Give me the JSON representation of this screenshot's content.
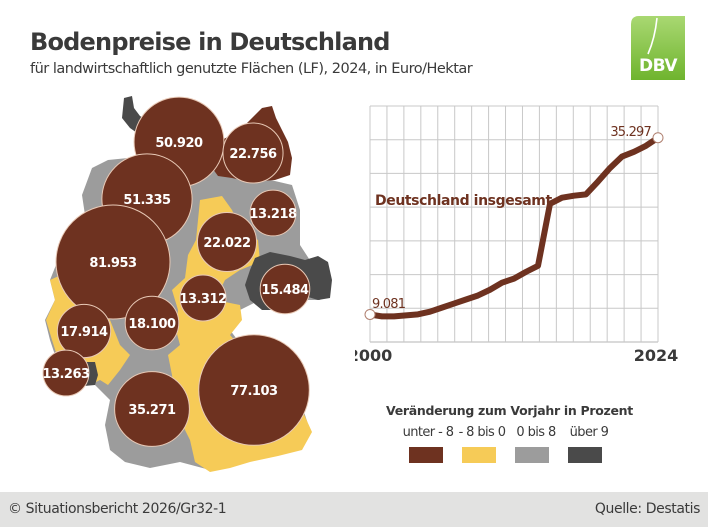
{
  "header": {
    "title": "Bodenpreise in Deutschland",
    "subtitle": "für landwirtschaftlich genutzte Flächen (LF), 2024, in Euro/Hektar",
    "logo_text": "DBV"
  },
  "colors": {
    "brown": "#6e3220",
    "yellow": "#f6cb57",
    "gray": "#9c9c9c",
    "dark": "#4a4a4a",
    "logo_green": "#7cbf3c",
    "grid": "#c8c8c8",
    "text": "#3a3a3a"
  },
  "map": {
    "bubbles": [
      {
        "label": "50.920",
        "value": 50920,
        "category": "unter -8"
      },
      {
        "label": "22.756",
        "value": 22756,
        "category": "unter -8"
      },
      {
        "label": "51.335",
        "value": 51335,
        "category": "unter -8"
      },
      {
        "label": "81.953",
        "value": 81953,
        "category": "unter -8"
      },
      {
        "label": "13.218",
        "value": 13218,
        "category": "unter -8"
      },
      {
        "label": "22.022",
        "value": 22022,
        "category": "unter -8"
      },
      {
        "label": "13.312",
        "value": 13312,
        "category": "unter -8"
      },
      {
        "label": "15.484",
        "value": 15484,
        "category": "unter -8"
      },
      {
        "label": "17.914",
        "value": 17914,
        "category": "unter -8"
      },
      {
        "label": "18.100",
        "value": 18100,
        "category": "unter -8"
      },
      {
        "label": "13.263",
        "value": 13263,
        "category": "unter -8"
      },
      {
        "label": "35.271",
        "value": 35271,
        "category": "unter -8"
      },
      {
        "label": "77.103",
        "value": 77103,
        "category": "unter -8"
      }
    ]
  },
  "chart_data": {
    "type": "line",
    "title": "Deutschland insgesamt",
    "x": [
      2000,
      2001,
      2002,
      2003,
      2004,
      2005,
      2006,
      2007,
      2008,
      2009,
      2010,
      2011,
      2012,
      2013,
      2014,
      2015,
      2016,
      2017,
      2018,
      2019,
      2020,
      2021,
      2022,
      2023,
      2024
    ],
    "series": [
      {
        "name": "Deutschland insgesamt",
        "values": [
          9081,
          8800,
          8800,
          8950,
          9100,
          9500,
          10100,
          10700,
          11300,
          11900,
          12750,
          13800,
          14400,
          15400,
          16300,
          25500,
          26400,
          26700,
          26900,
          28800,
          30800,
          32500,
          33200,
          34100,
          35297
        ]
      }
    ],
    "xlim": [
      2000,
      2024
    ],
    "ylim": [
      5000,
      40000
    ],
    "y_grid_step": 5000,
    "grid": true,
    "x_tick_labels": [
      "2000",
      "2024"
    ],
    "annotations": {
      "start": "9.081",
      "end": "35.297"
    }
  },
  "legend": {
    "title": "Veränderung zum Vorjahr in Prozent",
    "items": [
      {
        "label": "unter - 8",
        "color": "#6e3220"
      },
      {
        "label": "- 8 bis 0",
        "color": "#f6cb57"
      },
      {
        "label": "0 bis 8",
        "color": "#9c9c9c"
      },
      {
        "label": "über 9",
        "color": "#4a4a4a"
      }
    ]
  },
  "footer": {
    "left": "© Situationsbericht 2026/Gr32-1",
    "right": "Quelle: Destatis"
  }
}
